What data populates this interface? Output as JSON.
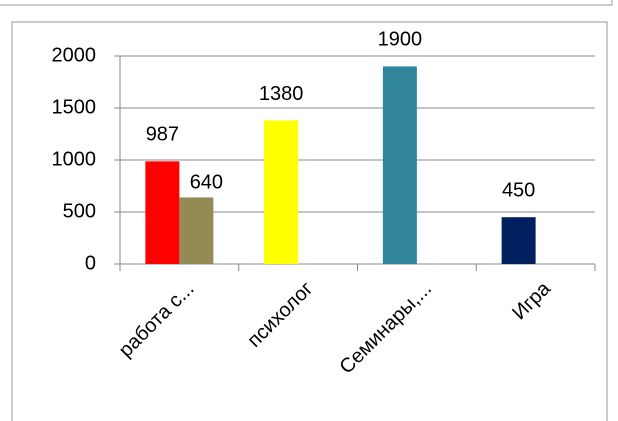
{
  "chart_data": {
    "type": "bar",
    "categories": [
      "работа с...",
      "психолог",
      "Семинары,...",
      "Игра"
    ],
    "series": [
      {
        "colors": [
          "#ff0000",
          "#ffff00",
          "#31859c",
          "#002060"
        ],
        "values": [
          987,
          1380,
          1900,
          450
        ]
      },
      {
        "colors": [
          "#948a54",
          null,
          null,
          null
        ],
        "values": [
          640,
          null,
          null,
          null
        ]
      }
    ],
    "ylim": [
      0,
      2000
    ],
    "yticks": [
      0,
      500,
      1000,
      1500,
      2000
    ],
    "grid": true
  }
}
